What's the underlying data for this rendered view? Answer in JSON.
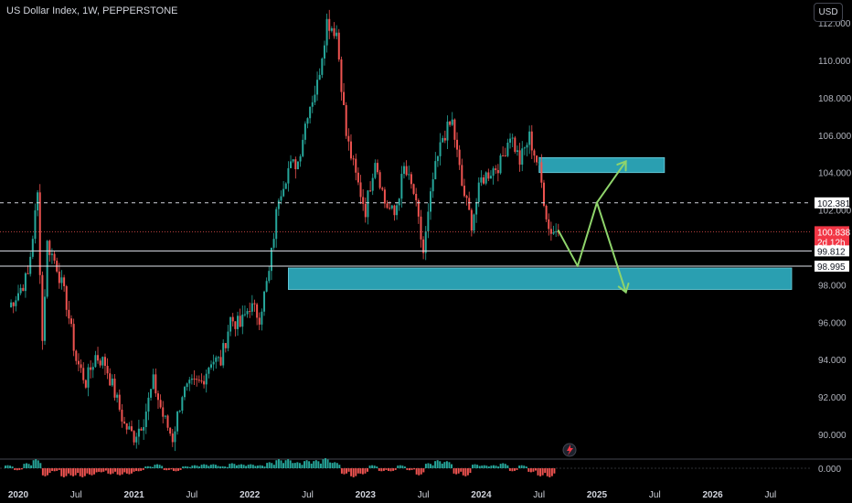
{
  "header": {
    "symbol_title": "US Dollar Index, 1W, PEPPERSTONE",
    "currency_button": "USD"
  },
  "colors": {
    "background": "#000000",
    "up_candle": "#26a69a",
    "down_candle": "#ef5350",
    "zone_fill": "#2a9fb1",
    "arrow": "#8fd46b",
    "current_price_label": "#f23645",
    "ref_label": "#ffffff"
  },
  "price_labels": {
    "dashed_level": "102.381",
    "current_price": "100.838",
    "countdown": "2d 12h",
    "upper_line": "99.812",
    "lower_line": "98.995"
  },
  "oscillator": {
    "zero_label": "0.000"
  },
  "chart_data": {
    "type": "candlestick",
    "title": "US Dollar Index, 1W, PEPPERSTONE",
    "x_ticks": [
      "2020",
      "Jul",
      "2021",
      "Jul",
      "2022",
      "Jul",
      "2023",
      "Jul",
      "2024",
      "Jul",
      "2025",
      "Jul",
      "2026",
      "Jul"
    ],
    "y_ticks": [
      "112.000",
      "110.000",
      "108.000",
      "106.000",
      "104.000",
      "102.000",
      "98.000",
      "96.000",
      "94.000",
      "92.000",
      "90.000"
    ],
    "ylim": [
      89.0,
      113.0
    ],
    "x_range": [
      "2020-01",
      "2026-09"
    ],
    "price_path": [
      [
        "2019-12",
        96.8
      ],
      [
        "2020-01",
        97.6
      ],
      [
        "2020-02",
        98.5
      ],
      [
        "2020-03",
        102.8
      ],
      [
        "2020-03",
        95.0
      ],
      [
        "2020-04",
        100.2
      ],
      [
        "2020-05",
        99.0
      ],
      [
        "2020-06",
        97.0
      ],
      [
        "2020-07",
        94.0
      ],
      [
        "2020-08",
        92.8
      ],
      [
        "2020-09",
        94.2
      ],
      [
        "2020-10",
        93.8
      ],
      [
        "2020-11",
        92.2
      ],
      [
        "2020-12",
        90.5
      ],
      [
        "2021-01",
        89.9
      ],
      [
        "2021-02",
        90.8
      ],
      [
        "2021-03",
        92.8
      ],
      [
        "2021-04",
        91.0
      ],
      [
        "2021-05",
        89.8
      ],
      [
        "2021-06",
        92.2
      ],
      [
        "2021-07",
        92.6
      ],
      [
        "2021-08",
        92.8
      ],
      [
        "2021-09",
        94.0
      ],
      [
        "2021-10",
        93.9
      ],
      [
        "2021-11",
        96.2
      ],
      [
        "2021-12",
        95.8
      ],
      [
        "2022-01",
        96.9
      ],
      [
        "2022-02",
        96.3
      ],
      [
        "2022-03",
        98.6
      ],
      [
        "2022-04",
        102.8
      ],
      [
        "2022-05",
        104.2
      ],
      [
        "2022-06",
        104.6
      ],
      [
        "2022-07",
        107.3
      ],
      [
        "2022-08",
        108.7
      ],
      [
        "2022-09",
        112.1
      ],
      [
        "2022-10",
        111.5
      ],
      [
        "2022-11",
        106.0
      ],
      [
        "2022-12",
        103.8
      ],
      [
        "2023-01",
        102.0
      ],
      [
        "2023-02",
        104.8
      ],
      [
        "2023-03",
        102.4
      ],
      [
        "2023-04",
        101.7
      ],
      [
        "2023-05",
        104.2
      ],
      [
        "2023-06",
        102.9
      ],
      [
        "2023-07",
        99.7
      ],
      [
        "2023-08",
        103.6
      ],
      [
        "2023-09",
        105.9
      ],
      [
        "2023-10",
        106.7
      ],
      [
        "2023-11",
        103.3
      ],
      [
        "2023-12",
        101.3
      ],
      [
        "2024-01",
        103.6
      ],
      [
        "2024-02",
        104.1
      ],
      [
        "2024-03",
        104.5
      ],
      [
        "2024-04",
        106.1
      ],
      [
        "2024-05",
        104.6
      ],
      [
        "2024-06",
        105.9
      ],
      [
        "2024-07",
        104.2
      ],
      [
        "2024-08",
        101.0
      ],
      [
        "2024-09",
        100.8
      ]
    ],
    "zones": [
      {
        "x": [
          "2024-07",
          "2025-08"
        ],
        "y": [
          104.0,
          104.8
        ]
      },
      {
        "x": [
          "2022-05",
          "2026-10"
        ],
        "y": [
          97.75,
          98.9
        ]
      }
    ],
    "projections": [
      {
        "from": [
          "2024-09",
          100.9
        ],
        "to": [
          "2024-11",
          99.0
        ]
      },
      {
        "from": [
          "2024-11",
          99.0
        ],
        "to": [
          "2025-01",
          102.4
        ]
      },
      {
        "from": [
          "2025-01",
          102.4
        ],
        "to": [
          "2025-04",
          104.6
        ]
      },
      {
        "from": [
          "2025-01",
          102.4
        ],
        "to": [
          "2025-04",
          97.6
        ]
      }
    ],
    "horizontal_lines": [
      {
        "value": 102.381,
        "style": "dashed"
      },
      {
        "value": 100.838,
        "style": "dotted"
      },
      {
        "value": 99.812,
        "style": "solid"
      },
      {
        "value": 98.995,
        "style": "solid"
      }
    ],
    "oscillator": {
      "type": "histogram",
      "zero": 0.0,
      "values": [
        0.3,
        -0.2,
        0.5,
        0.9,
        -0.8,
        -0.3,
        -0.9,
        -0.8,
        -0.9,
        -0.7,
        -0.4,
        -0.6,
        -0.7,
        -0.6,
        -0.3,
        0.2,
        0.4,
        -0.2,
        -0.3,
        0.2,
        0.3,
        0.4,
        0.4,
        0.2,
        0.5,
        0.4,
        0.4,
        0.3,
        0.6,
        0.9,
        0.9,
        0.6,
        0.8,
        0.8,
        1.0,
        0.6,
        -0.6,
        -0.9,
        -0.6,
        0.3,
        -0.3,
        -0.3,
        0.3,
        -0.2,
        -0.7,
        0.5,
        0.8,
        0.7,
        -0.6,
        -0.8,
        0.4,
        0.3,
        0.3,
        0.5,
        -0.3,
        0.3,
        -0.4,
        -0.8,
        -0.9
      ]
    }
  }
}
